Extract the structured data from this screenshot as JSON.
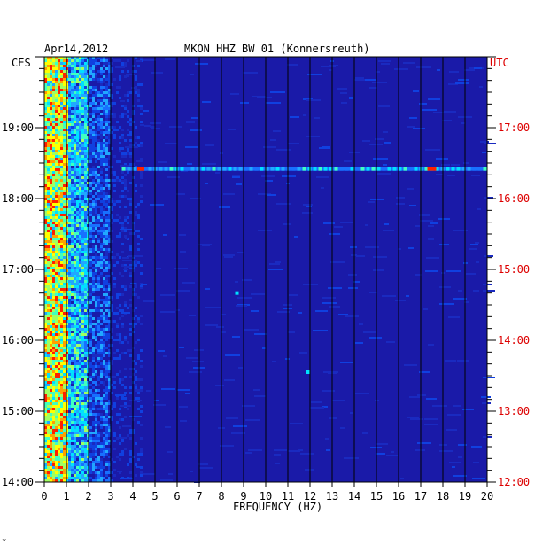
{
  "header": {
    "date": "Apr14,2012",
    "station": "MKON HHZ BW 01 (Konnersreuth)",
    "left_zone": "CES",
    "right_zone": "UTC"
  },
  "colors": {
    "left_axis_text": "#000000",
    "right_axis_text": "#dd0000",
    "background": "#1a1aa8",
    "hot": "#ff2000",
    "warm": "#ffff00",
    "mid": "#00e0ff"
  },
  "footer_mark": "*",
  "chart_data": {
    "type": "heatmap",
    "title": "MKON HHZ BW 01 (Konnersreuth)",
    "xlabel": "FREQUENCY (HZ)",
    "ylabel": "",
    "xlim": [
      0,
      20
    ],
    "x_ticks": [
      "0",
      "1",
      "2",
      "3",
      "4",
      "5",
      "6",
      "7",
      "8",
      "9",
      "10",
      "11",
      "12",
      "13",
      "14",
      "15",
      "16",
      "17",
      "18",
      "19",
      "20"
    ],
    "left_time_ticks": [
      "19:00",
      "18:00",
      "17:00",
      "16:00",
      "15:00",
      "14:00"
    ],
    "right_time_ticks": [
      "17:00",
      "16:00",
      "15:00",
      "14:00",
      "13:00",
      "12:00"
    ],
    "notable_features": [
      {
        "type": "horizontal-band",
        "time_ces": "18:25",
        "frequency_range_hz": [
          3.5,
          20
        ]
      },
      {
        "type": "spot",
        "time_ces": "16:40",
        "frequency_hz": 8.7
      },
      {
        "type": "spot",
        "time_ces": "15:33",
        "frequency_hz": 11.9
      }
    ]
  }
}
